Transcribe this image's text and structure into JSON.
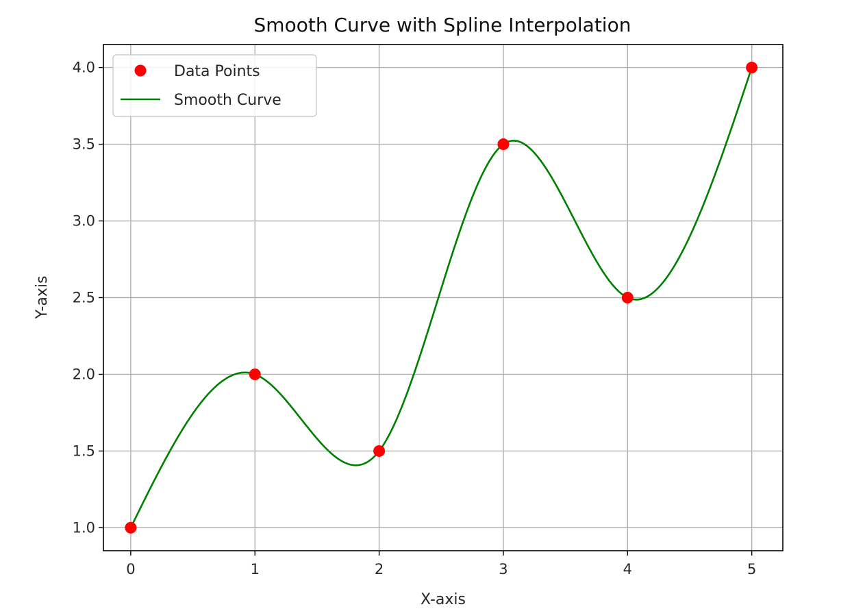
{
  "chart_data": {
    "type": "scatter+line",
    "title": "Smooth Curve with Spline Interpolation",
    "xlabel": "X-axis",
    "ylabel": "Y-axis",
    "xlim": [
      -0.22,
      5.25
    ],
    "ylim": [
      0.85,
      4.15
    ],
    "xticks": [
      0,
      1,
      2,
      3,
      4,
      5
    ],
    "yticks": [
      1.0,
      1.5,
      2.0,
      2.5,
      3.0,
      3.5,
      4.0
    ],
    "xtick_labels": [
      "0",
      "1",
      "2",
      "3",
      "4",
      "5"
    ],
    "ytick_labels": [
      "1.0",
      "1.5",
      "2.0",
      "2.5",
      "3.0",
      "3.5",
      "4.0"
    ],
    "grid": true,
    "legend_position": "top-left",
    "series": [
      {
        "name": "Data Points",
        "kind": "scatter",
        "color": "#ff0000",
        "x": [
          0,
          1,
          2,
          3,
          4,
          5
        ],
        "y": [
          1,
          2,
          1.5,
          3.5,
          2.5,
          4
        ]
      },
      {
        "name": "Smooth Curve",
        "kind": "line",
        "color": "#008000",
        "interpolation": "cubic-spline",
        "x": [
          0,
          1,
          2,
          3,
          4,
          5
        ],
        "y": [
          1,
          2,
          1.5,
          3.5,
          2.5,
          4
        ]
      }
    ]
  }
}
